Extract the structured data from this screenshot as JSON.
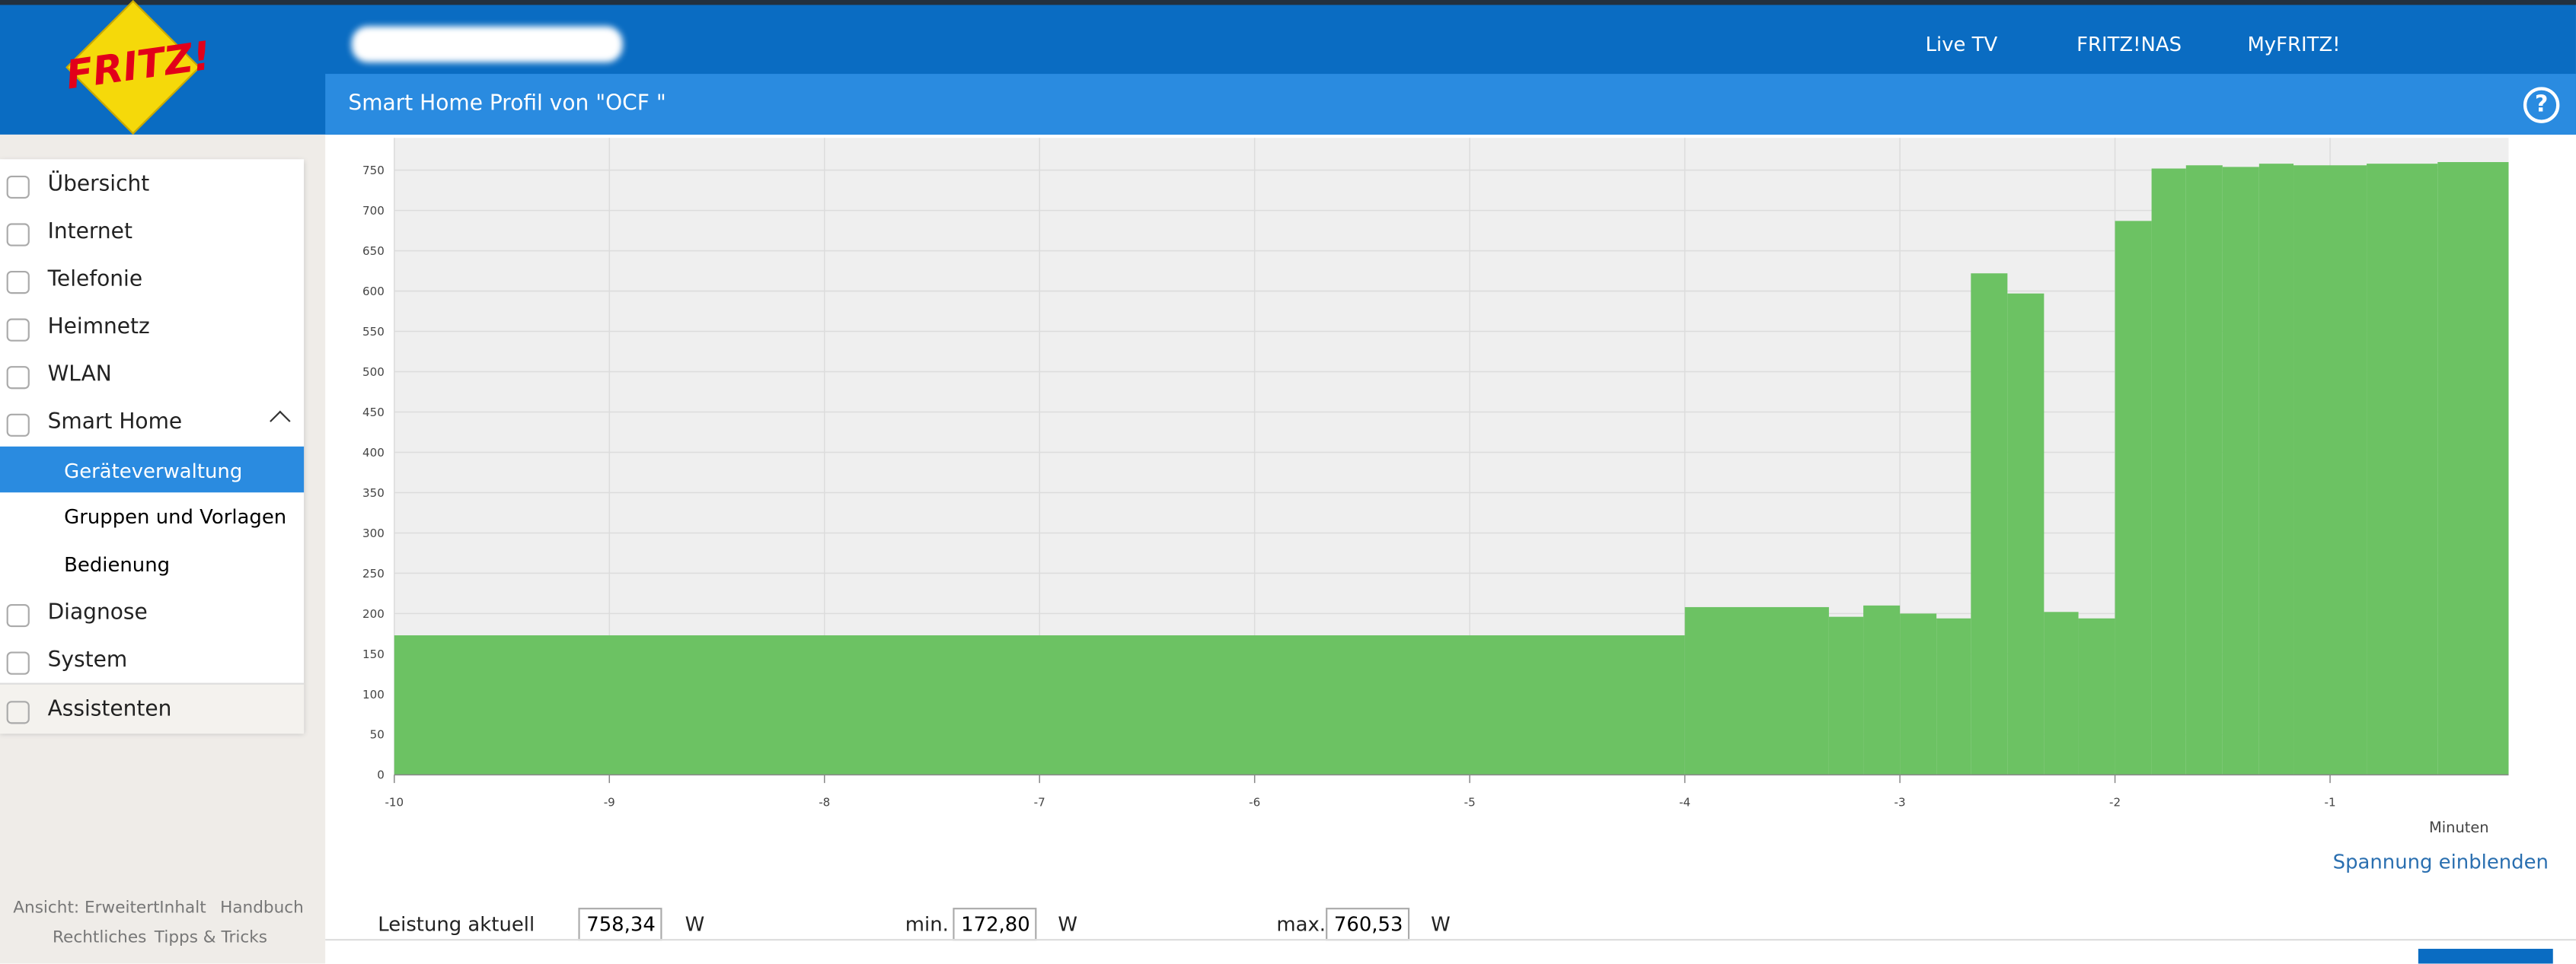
{
  "header": {
    "nav": [
      "Live TV",
      "FRITZ!NAS",
      "MyFRITZ!"
    ],
    "title": "Smart Home Profil von \"OCF \"",
    "help": "?"
  },
  "logo": "FRITZ!",
  "menu": [
    "Übersicht",
    "Internet",
    "Telefonie",
    "Heimnetz",
    "WLAN",
    "Smart Home",
    "Geräteverwaltung",
    "Gruppen und Vorlagen",
    "Bedienung",
    "Diagnose",
    "System",
    "Assistenten"
  ],
  "footer": [
    "Ansicht: Erweitert",
    "Inhalt",
    "Handbuch",
    "Rechtliches",
    "Tipps & Tricks"
  ],
  "chart_data": {
    "type": "step-area",
    "x_label": "Minuten",
    "x": [
      -10,
      -4,
      -3.33,
      -3.17,
      -3,
      -2.83,
      -2.67,
      -2.5,
      -2.33,
      -2.17,
      -2,
      -1.83,
      -1.67,
      -1.5,
      -1.33,
      -1.17,
      -0.83,
      -0.5
    ],
    "series": [
      {
        "color": "#6cc263",
        "values": [
          173,
          208,
          196,
          210,
          200,
          194,
          622,
          597,
          202,
          194,
          687,
          752,
          756,
          754,
          758,
          756,
          758,
          760
        ]
      }
    ],
    "xlim": [
      -10,
      -0.17
    ],
    "xticks": [
      -10,
      -9,
      -8,
      -7,
      -6,
      -5,
      -4,
      -3,
      -2,
      -1
    ],
    "ylim": [
      0,
      790
    ],
    "yticks": [
      0,
      50,
      100,
      150,
      200,
      250,
      300,
      350,
      400,
      450,
      500,
      550,
      600,
      650,
      700,
      750
    ],
    "grid": true
  },
  "link": "Spannung einblenden",
  "readings": [
    {
      "label": "Leistung aktuell",
      "value": "758,34",
      "unit": "W"
    },
    {
      "label": "min.",
      "value": "172,80",
      "unit": "W"
    },
    {
      "label": "max.",
      "value": "760,53",
      "unit": "W"
    }
  ]
}
